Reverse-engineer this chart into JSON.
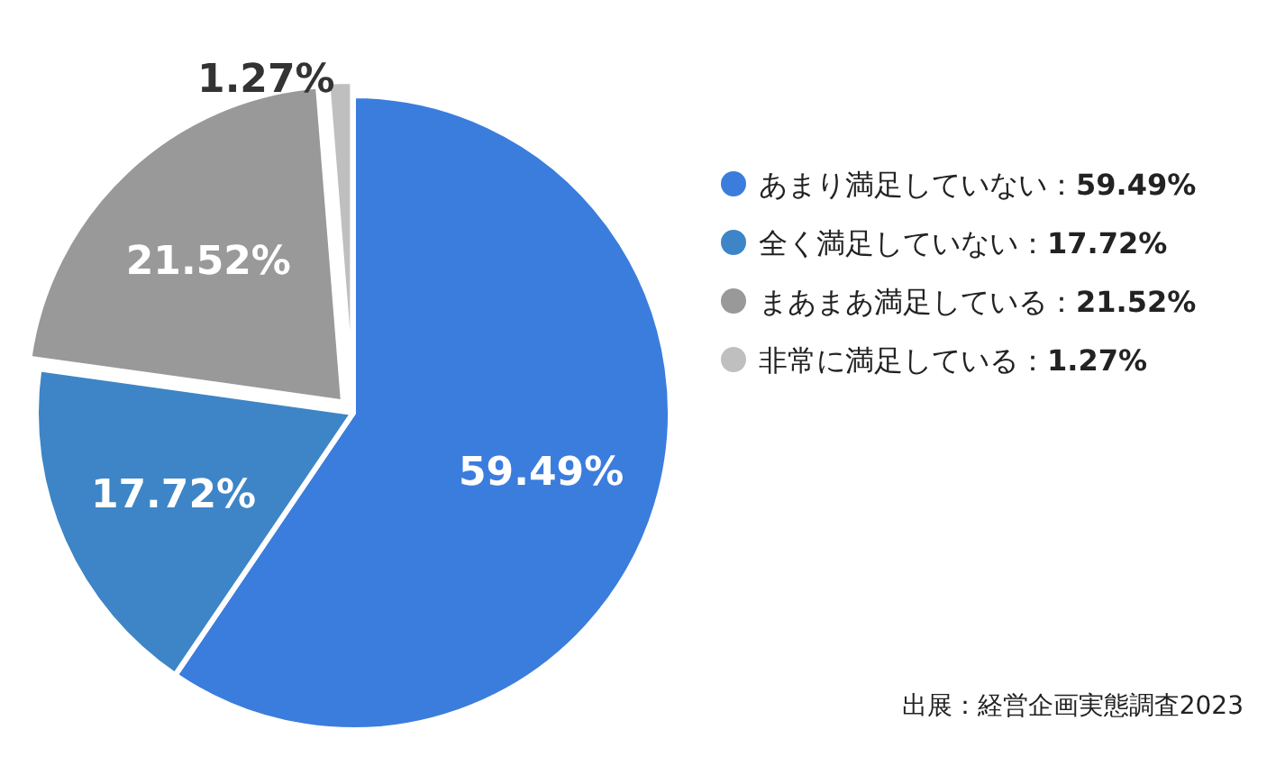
{
  "chart_data": {
    "type": "pie",
    "categories": [
      "あまり満足していない",
      "全く満足していない",
      "まあまあ満足している",
      "非常に満足している"
    ],
    "values": [
      59.49,
      17.72,
      21.52,
      1.27
    ],
    "value_labels": [
      "59.49%",
      "17.72%",
      "21.52%",
      "1.27%"
    ],
    "colors": [
      "#3b7ddd",
      "#3d85c6",
      "#999999",
      "#bfbfbf"
    ],
    "legend": "right",
    "annotations": [
      "出展：経営企画実態調査2023"
    ]
  }
}
